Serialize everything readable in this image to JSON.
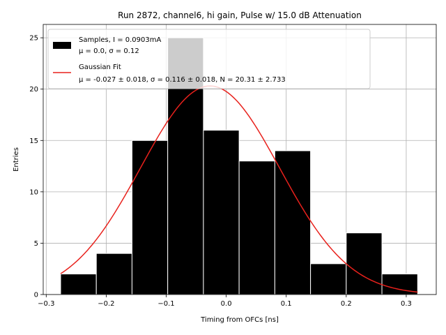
{
  "chart_data": {
    "type": "bar",
    "title": "Run 2872, channel6, hi gain, Pulse w/ 15.0 dB Attenuation",
    "xlabel": "Timing from OFCs [ns]",
    "ylabel": "Entries",
    "xlim": [
      -0.305,
      0.35
    ],
    "ylim": [
      0,
      26.3
    ],
    "xticks": [
      -0.3,
      -0.2,
      -0.1,
      0.0,
      0.1,
      0.2,
      0.3
    ],
    "xtick_labels": [
      "−0.3",
      "−0.2",
      "−0.1",
      "0.0",
      "0.1",
      "0.2",
      "0.3"
    ],
    "yticks": [
      0,
      5,
      10,
      15,
      20,
      25
    ],
    "ytick_labels": [
      "0",
      "5",
      "10",
      "15",
      "20",
      "25"
    ],
    "grid": true,
    "legend_position": "top-left",
    "histogram": {
      "bin_edges": [
        -0.276,
        -0.2165,
        -0.157,
        -0.0975,
        -0.038,
        0.0215,
        0.081,
        0.1405,
        0.2,
        0.2595,
        0.319
      ],
      "counts": [
        2,
        4,
        15,
        25,
        16,
        13,
        14,
        3,
        6,
        2
      ],
      "color": "#000000",
      "edgecolor": "#ffffff"
    },
    "fit": {
      "mu": -0.027,
      "sigma": 0.116,
      "N": 20.31,
      "x_range": [
        -0.276,
        0.319
      ],
      "color": "#e8211c"
    },
    "legend": [
      {
        "kind": "patch",
        "color": "#000000",
        "line1": "Samples, I = 0.0903mA",
        "line2": "μ = 0.0, σ = 0.12"
      },
      {
        "kind": "line",
        "color": "#e8211c",
        "line1": "Gaussian Fit",
        "line2": "μ = -0.027 ± 0.018, σ = 0.116 ± 0.018, N = 20.31 ± 2.733"
      }
    ]
  }
}
